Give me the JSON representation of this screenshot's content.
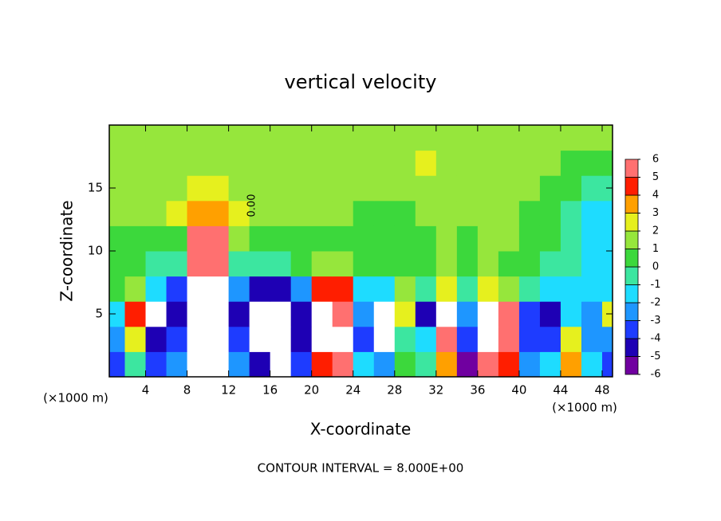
{
  "chart_data": {
    "type": "heatmap",
    "title": "vertical velocity",
    "xlabel": "X-coordinate",
    "ylabel": "Z-coordinate",
    "x_unit_label": "(×1000 m)",
    "note": "CONTOUR INTERVAL = 8.000E+00",
    "contour_label": "0.00",
    "x": [
      1,
      3,
      5,
      7,
      9,
      11,
      13,
      15,
      17,
      19,
      21,
      23,
      25,
      27,
      29,
      31,
      33,
      35,
      37,
      39,
      41,
      43,
      45,
      47,
      49
    ],
    "y": [
      1,
      3,
      5,
      7,
      9,
      11,
      13,
      15,
      17,
      19
    ],
    "z": [
      [
        -4,
        -1,
        -4,
        -3,
        8,
        8,
        -3,
        -5,
        -8,
        -4,
        4,
        5,
        -2,
        -3,
        0,
        -1,
        3,
        -6,
        5,
        4,
        -3,
        -2,
        3,
        -2,
        -4
      ],
      [
        -3,
        2,
        -5,
        -4,
        9,
        9,
        -4,
        -8,
        -8,
        -5,
        8,
        8,
        -4,
        -7,
        -1,
        -2,
        6,
        -4,
        8,
        6,
        -4,
        -4,
        2,
        -3,
        -3
      ],
      [
        -2,
        4,
        -7,
        -5,
        9,
        9,
        -5,
        -8,
        -8,
        -5,
        8,
        6,
        -3,
        -7,
        2,
        -5,
        7,
        -3,
        7,
        5,
        -4,
        -5,
        -2,
        -3,
        2
      ],
      [
        0,
        1,
        -2,
        -4,
        8,
        8,
        -3,
        -5,
        -5,
        -3,
        4,
        4,
        -2,
        -2,
        1,
        -1,
        2,
        -1,
        2,
        1,
        -1,
        -2,
        -2,
        -2,
        -2
      ],
      [
        0,
        0,
        -1,
        -1,
        6,
        6,
        -1,
        -1,
        -1,
        0,
        1,
        1,
        0,
        0,
        0,
        0,
        1,
        0,
        1,
        0,
        0,
        -1,
        -1,
        -2,
        -2
      ],
      [
        0,
        0,
        0,
        0,
        5,
        5,
        1,
        0,
        0,
        0,
        0,
        0,
        0,
        0,
        0,
        0,
        1,
        0,
        1,
        1,
        0,
        0,
        -1,
        -2,
        -2
      ],
      [
        1,
        1,
        1,
        2,
        3,
        3,
        2,
        1,
        1,
        1,
        1,
        1,
        0,
        0,
        0,
        1,
        1,
        1,
        1,
        1,
        0,
        0,
        -1,
        -2,
        -2
      ],
      [
        1,
        1,
        1,
        1,
        2,
        2,
        1,
        1,
        1,
        1,
        1,
        1,
        1,
        1,
        1,
        1,
        1,
        1,
        1,
        1,
        1,
        0,
        0,
        -1,
        -1
      ],
      [
        1,
        1,
        1,
        1,
        1,
        1,
        1,
        1,
        1,
        1,
        1,
        1,
        1,
        1,
        1,
        2,
        1,
        1,
        1,
        1,
        1,
        1,
        0,
        0,
        0
      ],
      [
        1,
        1,
        1,
        1,
        1,
        1,
        1,
        1,
        1,
        1,
        1,
        1,
        1,
        1,
        1,
        1,
        1,
        1,
        1,
        1,
        1,
        1,
        1,
        1,
        1
      ]
    ],
    "xlim": [
      0.5,
      49
    ],
    "xticks": [
      4,
      8,
      12,
      16,
      20,
      24,
      28,
      32,
      36,
      40,
      44,
      48
    ],
    "ylim": [
      0,
      20
    ],
    "yticks": [
      5,
      10,
      15
    ],
    "colorbar_ticks": [
      -6,
      -5,
      -4,
      -3,
      -2,
      -1,
      0,
      1,
      2,
      3,
      4,
      5,
      6
    ],
    "colors": [
      "#7000a0",
      "#1e00b4",
      "#1e3cff",
      "#1e96ff",
      "#1edcff",
      "#3ce6a0",
      "#3cd83c",
      "#96e63c",
      "#e6f01e",
      "#ffa000",
      "#ff1e00",
      "#ff7070"
    ],
    "out_of_range_color": "#ffffff"
  }
}
